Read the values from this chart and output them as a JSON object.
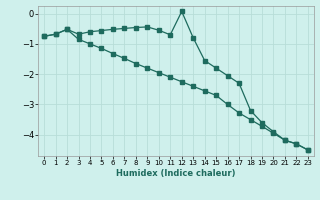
{
  "xlabel": "Humidex (Indice chaleur)",
  "bg_color": "#cff0ec",
  "grid_color": "#b8ddd8",
  "line_color": "#1e6b5e",
  "xlim": [
    -0.5,
    23.5
  ],
  "ylim": [
    -4.7,
    0.25
  ],
  "yticks": [
    0,
    -1,
    -2,
    -3,
    -4
  ],
  "xticks": [
    0,
    1,
    2,
    3,
    4,
    5,
    6,
    7,
    8,
    9,
    10,
    11,
    12,
    13,
    14,
    15,
    16,
    17,
    18,
    19,
    20,
    21,
    22,
    23
  ],
  "line1_x": [
    0,
    1,
    2,
    3,
    4,
    5,
    6,
    7,
    8,
    9,
    10,
    11,
    12,
    13,
    14,
    15,
    16,
    17,
    18,
    19,
    20,
    21,
    22,
    23
  ],
  "line1_y": [
    -0.75,
    -0.68,
    -0.52,
    -0.68,
    -0.6,
    -0.56,
    -0.52,
    -0.49,
    -0.46,
    -0.44,
    -0.55,
    -0.7,
    0.07,
    -0.8,
    -1.55,
    -1.8,
    -2.05,
    -2.3,
    -3.2,
    -3.6,
    -3.9,
    -4.18,
    -4.3,
    -4.5
  ],
  "line2_x": [
    0,
    1,
    2,
    3,
    4,
    5,
    6,
    7,
    8,
    9,
    10,
    11,
    12,
    13,
    14,
    15,
    16,
    17,
    18,
    19,
    20,
    21,
    22,
    23
  ],
  "line2_y": [
    -0.75,
    -0.68,
    -0.52,
    -0.85,
    -1.0,
    -1.15,
    -1.32,
    -1.48,
    -1.65,
    -1.8,
    -1.95,
    -2.1,
    -2.25,
    -2.4,
    -2.55,
    -2.7,
    -3.0,
    -3.28,
    -3.5,
    -3.72,
    -3.95,
    -4.18,
    -4.3,
    -4.5
  ]
}
